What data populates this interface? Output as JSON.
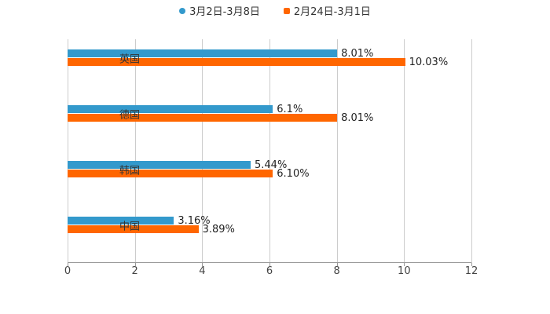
{
  "legend": [
    {
      "label": "3月2日-3月8日",
      "color": "#3399cc",
      "shape": "circle"
    },
    {
      "label": "2月24日-3月1日",
      "color": "#ff6600",
      "shape": "square"
    }
  ],
  "chart_data": {
    "type": "bar",
    "orientation": "horizontal",
    "title": "",
    "xlabel": "",
    "ylabel": "",
    "categories": [
      "英国",
      "德国",
      "韩国",
      "中国"
    ],
    "series": [
      {
        "name": "3月2日-3月8日",
        "color": "#3399cc",
        "values": [
          8.01,
          6.1,
          5.44,
          3.16
        ],
        "labels": [
          "8.01%",
          "6.1%",
          "5.44%",
          "3.16%"
        ]
      },
      {
        "name": "2月24日-3月1日",
        "color": "#ff6600",
        "values": [
          10.03,
          8.01,
          6.1,
          3.89
        ],
        "labels": [
          "10.03%",
          "8.01%",
          "6.10%",
          "3.89%"
        ]
      }
    ],
    "xlim": [
      0,
      12
    ],
    "xticks": [
      "0",
      "2",
      "4",
      "6",
      "8",
      "10",
      "12"
    ],
    "grid": true,
    "legend_position": "top"
  }
}
